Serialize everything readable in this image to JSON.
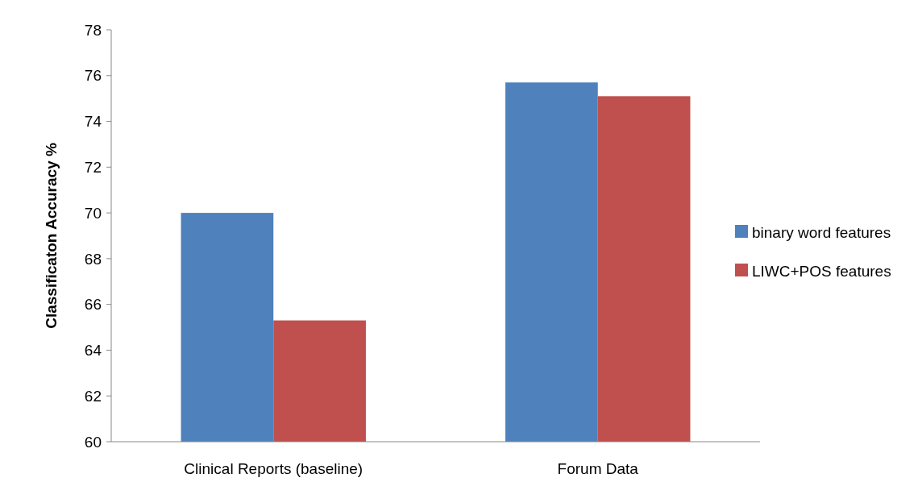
{
  "chart_data": {
    "type": "bar",
    "ylabel": "Classificaton Accuracy %",
    "categories": [
      "Clinical Reports (baseline)",
      "Forum Data"
    ],
    "series": [
      {
        "name": "binary word features",
        "color": "#4f81bd",
        "values": [
          70,
          75.7
        ]
      },
      {
        "name": "LIWC+POS features",
        "color": "#c0504d",
        "values": [
          65.3,
          75.1
        ]
      }
    ],
    "ylim": [
      60,
      78
    ],
    "yticks": [
      60,
      62,
      64,
      66,
      68,
      70,
      72,
      74,
      76,
      78
    ],
    "grid": false,
    "legend": "right"
  }
}
